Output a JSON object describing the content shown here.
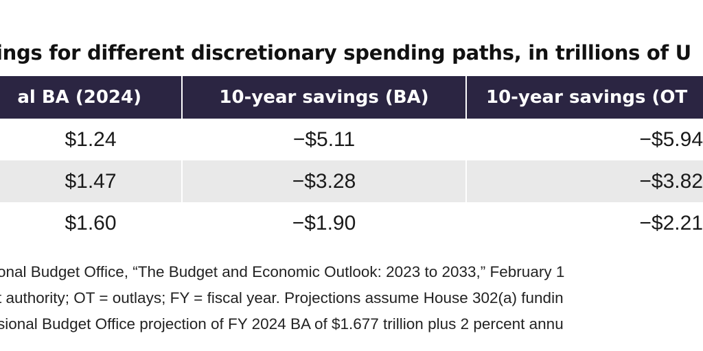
{
  "title": "ings for different discretionary spending paths, in trillions of U",
  "chart_data": {
    "type": "table",
    "columns": [
      "al BA (2024)",
      "10-year savings (BA)",
      "10-year savings (OT"
    ],
    "rows": [
      [
        "$1.24",
        "−$5.11",
        "−$5.94"
      ],
      [
        "$1.47",
        "−$3.28",
        "−$3.82"
      ],
      [
        "$1.60",
        "−$1.90",
        "−$2.21"
      ]
    ]
  },
  "notes": [
    "onal Budget Office, “The Budget and Economic Outlook: 2023 to 2033,” February 1",
    "t authority; OT = outlays; FY = fiscal year. Projections assume House 302(a) fundin",
    "sional Budget Office projection of FY 2024 BA of $1.677 trillion plus 2 percent annu"
  ],
  "colors": {
    "header_bg": "#2b2542",
    "header_text": "#ffffff",
    "shaded_row": "#e9e9e9"
  }
}
